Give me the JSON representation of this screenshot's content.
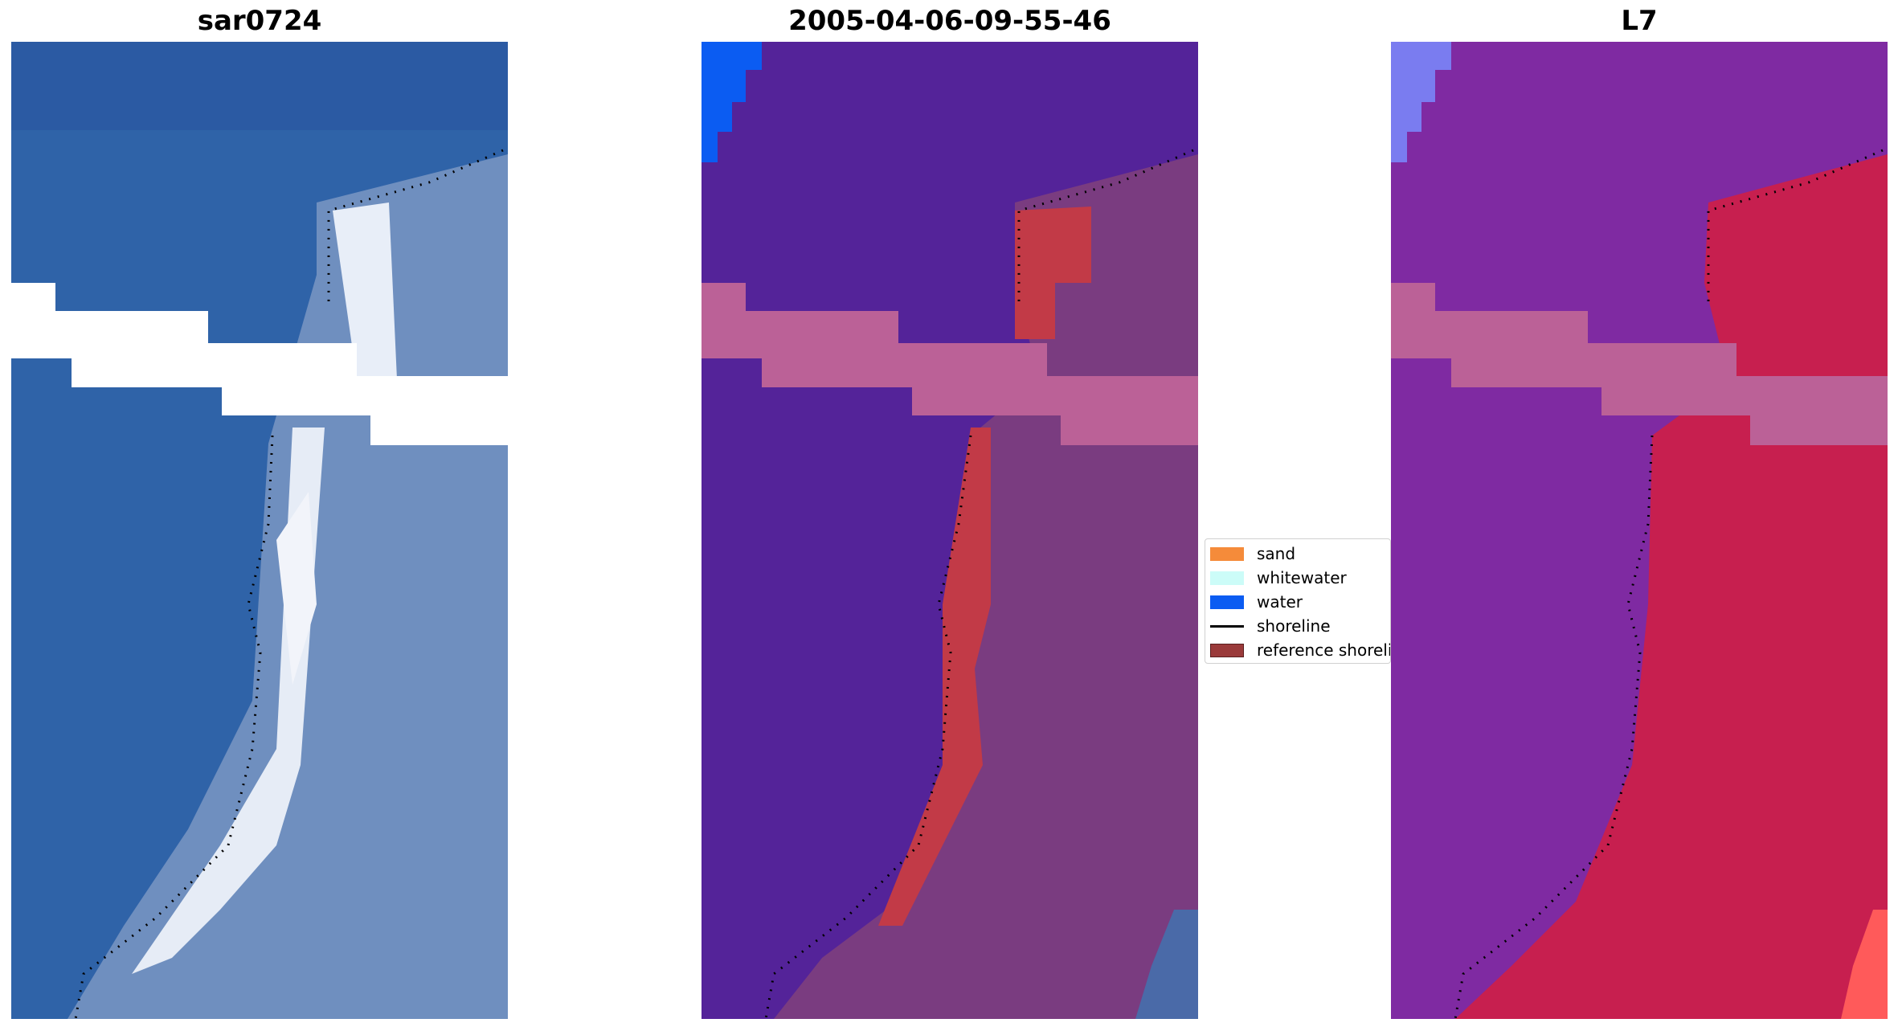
{
  "panels": [
    {
      "title": "sar0724"
    },
    {
      "title": "2005-04-06-09-55-46"
    },
    {
      "title": "L7"
    }
  ],
  "legend": {
    "items": [
      {
        "label": "sand",
        "color": "#f58b3a",
        "kind": "patch"
      },
      {
        "label": "whitewater",
        "color": "#ccfcf8",
        "kind": "patch"
      },
      {
        "label": "water",
        "color": "#0b5cf2",
        "kind": "patch"
      },
      {
        "label": "shoreline",
        "color": "#000000",
        "kind": "line"
      },
      {
        "label": "reference shoreline",
        "color": "#9a3a3a",
        "kind": "patch"
      }
    ]
  },
  "colors": {
    "rgb_water": "#2f63a8",
    "rgb_land": "#6f90c0",
    "rgb_bright": "#e8eef8",
    "class_water_bg": "#542399",
    "class_land": "#7a3c80",
    "class_band": "#bb6197",
    "class_red": "#c23a47",
    "l7_water": "#7f2aa2",
    "l7_land": "#c71f4f",
    "l7_band": "#bb6197"
  }
}
